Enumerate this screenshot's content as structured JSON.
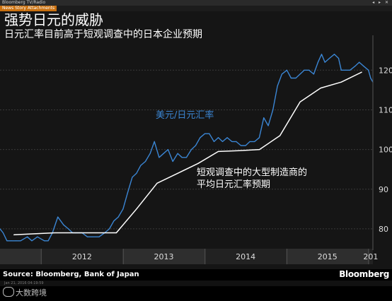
{
  "window": {
    "title": "Bloomberg TV/Radio",
    "controls": "◂ ▸ ✕",
    "tab": "News Story Attachments"
  },
  "header": {
    "title": "强势日元的威胁",
    "subtitle": "日元汇率目前高于短观调查中的日本企业预期"
  },
  "footer": {
    "source": "Source: Bloomberg, Bank of Japan",
    "brand": "Bloomberg",
    "date": "Jan 21, 2016 04:19:59"
  },
  "watermark": "大数跨境",
  "colors": {
    "usdjpy": "#3b86d4",
    "forecast": "#ffffff",
    "grid": "#3a3a3a",
    "axis_text": "#dddddd"
  },
  "chart_data": {
    "type": "line",
    "x_range": [
      "2011-07-01",
      "2016-01-20"
    ],
    "ylim": [
      75,
      127
    ],
    "y_ticks": [
      80,
      90,
      100,
      110,
      120
    ],
    "y_tick_labels": [
      "80",
      "90",
      "100",
      "110",
      "120"
    ],
    "x_tick_labels": [
      "2012",
      "2013",
      "2014",
      "2015",
      "201"
    ],
    "x_tick_positions": [
      "2012-07-01",
      "2013-07-01",
      "2014-07-01",
      "2015-07-01",
      "2016-01-10"
    ],
    "grid": true,
    "legend": "inline labels",
    "series": [
      {
        "name": "美元/日元汇率",
        "x": [
          "2011-07-01",
          "2011-07-15",
          "2011-08-01",
          "2011-08-20",
          "2011-09-10",
          "2011-10-01",
          "2011-10-31",
          "2011-11-20",
          "2011-12-15",
          "2012-01-15",
          "2012-02-01",
          "2012-02-20",
          "2012-03-15",
          "2012-04-10",
          "2012-05-01",
          "2012-05-20",
          "2012-06-10",
          "2012-07-01",
          "2012-07-25",
          "2012-08-15",
          "2012-09-15",
          "2012-10-10",
          "2012-10-31",
          "2012-11-20",
          "2012-12-10",
          "2012-12-31",
          "2013-01-20",
          "2013-02-10",
          "2013-03-01",
          "2013-03-20",
          "2013-04-10",
          "2013-05-01",
          "2013-05-20",
          "2013-06-10",
          "2013-06-30",
          "2013-07-20",
          "2013-08-10",
          "2013-09-01",
          "2013-09-20",
          "2013-10-10",
          "2013-11-01",
          "2013-11-20",
          "2013-12-10",
          "2013-12-31",
          "2014-01-20",
          "2014-02-10",
          "2014-03-01",
          "2014-03-20",
          "2014-04-10",
          "2014-05-01",
          "2014-05-20",
          "2014-06-10",
          "2014-07-01",
          "2014-07-20",
          "2014-08-10",
          "2014-08-31",
          "2014-09-20",
          "2014-10-10",
          "2014-10-31",
          "2014-11-20",
          "2014-12-10",
          "2015-01-01",
          "2015-01-20",
          "2015-02-10",
          "2015-03-01",
          "2015-03-20",
          "2015-04-10",
          "2015-05-01",
          "2015-05-20",
          "2015-06-05",
          "2015-06-20",
          "2015-07-10",
          "2015-08-01",
          "2015-08-20",
          "2015-09-01",
          "2015-09-20",
          "2015-10-10",
          "2015-11-01",
          "2015-11-20",
          "2015-12-10",
          "2015-12-31",
          "2016-01-10",
          "2016-01-20"
        ],
        "y": [
          80,
          79,
          77,
          77,
          77,
          77,
          78,
          77,
          78,
          77,
          77,
          79,
          83,
          81,
          80,
          79,
          79,
          79,
          78,
          78,
          78,
          79,
          80,
          82,
          83,
          85,
          89,
          93,
          94,
          96,
          97,
          99,
          102,
          98,
          99,
          100,
          97,
          99,
          98,
          98,
          100,
          101,
          103,
          104,
          104,
          102,
          103,
          102,
          103,
          102,
          102,
          101,
          101,
          102,
          102,
          103,
          108,
          106,
          110,
          116,
          119,
          120,
          118,
          118,
          119,
          120,
          120,
          119,
          122,
          124,
          122,
          123,
          124,
          123,
          120,
          120,
          120,
          121,
          122,
          121,
          120,
          118,
          117
        ]
      },
      {
        "name": "短观调查中的大型制造商的平均日元汇率预期",
        "x": [
          "2011-09-01",
          "2012-03-01",
          "2012-06-01",
          "2012-09-01",
          "2012-12-01",
          "2013-03-01",
          "2013-06-01",
          "2013-09-01",
          "2013-12-01",
          "2014-03-01",
          "2014-06-01",
          "2014-09-01",
          "2014-12-01",
          "2015-03-01",
          "2015-06-01",
          "2015-09-01",
          "2015-12-01"
        ],
        "y": [
          78.5,
          79,
          79,
          79,
          79,
          85,
          91.5,
          94,
          96.5,
          99.5,
          99.7,
          100,
          103.5,
          112,
          115.5,
          117,
          119.5
        ]
      }
    ]
  }
}
